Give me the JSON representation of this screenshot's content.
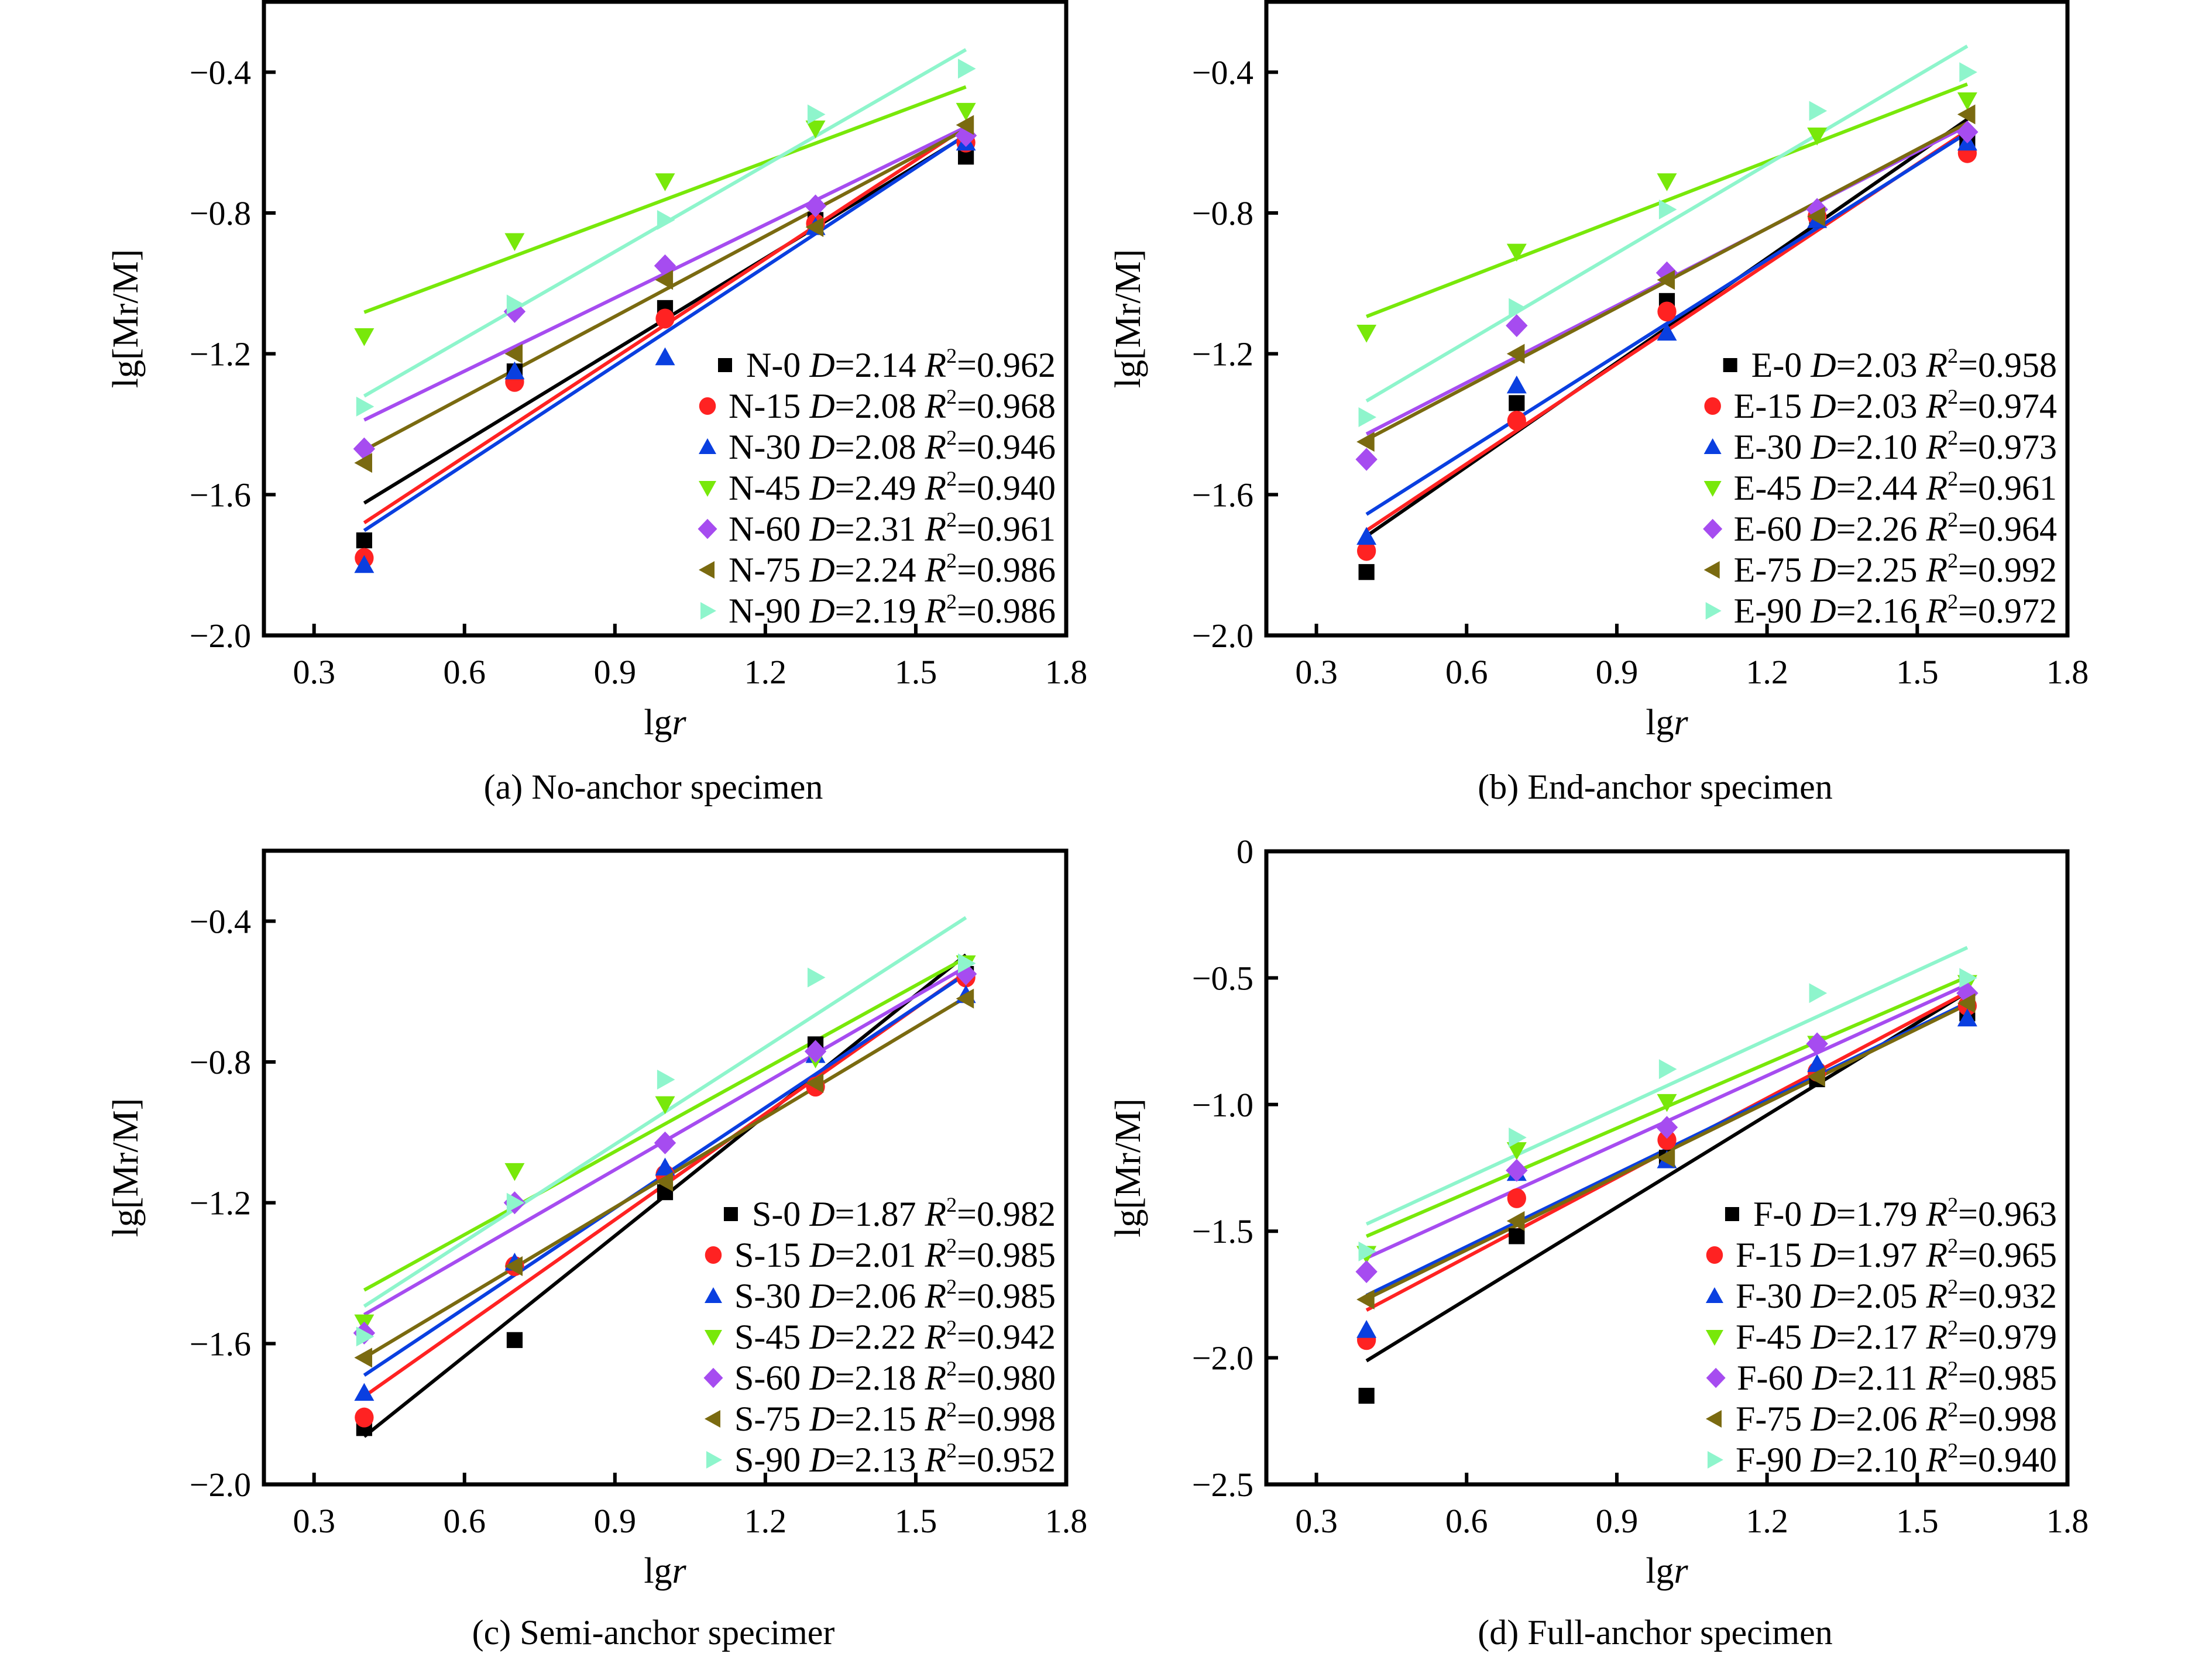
{
  "figure": {
    "colors": {
      "0": "#000000",
      "15": "#ff2222",
      "30": "#0a3fe0",
      "45": "#78e80a",
      "60": "#a64cf0",
      "75": "#7a6a10",
      "90": "#8ef5cc"
    },
    "markers": {
      "0": "square",
      "15": "circle",
      "30": "triangle-up",
      "45": "triangle-down",
      "60": "diamond",
      "75": "triangle-left",
      "90": "triangle-right"
    }
  },
  "chart_data": [
    {
      "type": "scatter",
      "id": "a",
      "caption": "(a) No-anchor specimen",
      "xlabel_prefix": "lg",
      "xlabel_var": "r",
      "ylabel": "lg[Mr/M]",
      "xlim": [
        0.2,
        1.8
      ],
      "ylim": [
        -2.0,
        -0.2
      ],
      "xticks": [
        0.3,
        0.6,
        0.9,
        1.2,
        1.5,
        1.8
      ],
      "xtick_labels": [
        "0.3",
        "0.6",
        "0.9",
        "1.2",
        "1.5",
        "1.8"
      ],
      "yticks": [
        -0.4,
        -0.8,
        -1.2,
        -1.6,
        -2.0
      ],
      "ytick_labels": [
        "−0.4",
        "−0.8",
        "−1.2",
        "−1.6",
        "−2.0"
      ],
      "legend_position": "bottom-right",
      "x": [
        0.4,
        0.7,
        1.0,
        1.3,
        1.6
      ],
      "series": [
        {
          "name": "N-0",
          "key": "0",
          "D": "2.14",
          "R2": "0.962",
          "values": [
            -1.73,
            -1.25,
            -1.07,
            -0.82,
            -0.64
          ]
        },
        {
          "name": "N-15",
          "key": "15",
          "D": "2.08",
          "R2": "0.968",
          "values": [
            -1.78,
            -1.28,
            -1.1,
            -0.83,
            -0.6
          ]
        },
        {
          "name": "N-30",
          "key": "30",
          "D": "2.08",
          "R2": "0.946",
          "values": [
            -1.8,
            -1.25,
            -1.21,
            -0.84,
            -0.6
          ]
        },
        {
          "name": "N-45",
          "key": "45",
          "D": "2.49",
          "R2": "0.940",
          "values": [
            -1.15,
            -0.88,
            -0.71,
            -0.56,
            -0.51
          ]
        },
        {
          "name": "N-60",
          "key": "60",
          "D": "2.31",
          "R2": "0.961",
          "values": [
            -1.47,
            -1.08,
            -0.95,
            -0.78,
            -0.58
          ]
        },
        {
          "name": "N-75",
          "key": "75",
          "D": "2.24",
          "R2": "0.986",
          "values": [
            -1.51,
            -1.2,
            -0.99,
            -0.84,
            -0.55
          ]
        },
        {
          "name": "N-90",
          "key": "90",
          "D": "2.19",
          "R2": "0.986",
          "values": [
            -1.35,
            -1.06,
            -0.82,
            -0.52,
            -0.39
          ]
        }
      ]
    },
    {
      "type": "scatter",
      "id": "b",
      "caption": "(b) End-anchor specimen",
      "xlabel_prefix": "lg",
      "xlabel_var": "r",
      "ylabel": "lg[Mr/M]",
      "xlim": [
        0.2,
        1.8
      ],
      "ylim": [
        -2.0,
        -0.2
      ],
      "xticks": [
        0.3,
        0.6,
        0.9,
        1.2,
        1.5,
        1.8
      ],
      "xtick_labels": [
        "0.3",
        "0.6",
        "0.9",
        "1.2",
        "1.5",
        "1.8"
      ],
      "yticks": [
        -0.4,
        -0.8,
        -1.2,
        -1.6,
        -2.0
      ],
      "ytick_labels": [
        "−0.4",
        "−0.8",
        "−1.2",
        "−1.6",
        "−2.0"
      ],
      "legend_position": "bottom-right",
      "x": [
        0.4,
        0.7,
        1.0,
        1.3,
        1.6
      ],
      "series": [
        {
          "name": "E-0",
          "key": "0",
          "D": "2.03",
          "R2": "0.958",
          "values": [
            -1.82,
            -1.34,
            -1.05,
            -0.82,
            -0.6
          ]
        },
        {
          "name": "E-15",
          "key": "15",
          "D": "2.03",
          "R2": "0.974",
          "values": [
            -1.76,
            -1.39,
            -1.08,
            -0.81,
            -0.63
          ]
        },
        {
          "name": "E-30",
          "key": "30",
          "D": "2.10",
          "R2": "0.973",
          "values": [
            -1.72,
            -1.29,
            -1.14,
            -0.82,
            -0.6
          ]
        },
        {
          "name": "E-45",
          "key": "45",
          "D": "2.44",
          "R2": "0.961",
          "values": [
            -1.14,
            -0.91,
            -0.71,
            -0.58,
            -0.48
          ]
        },
        {
          "name": "E-60",
          "key": "60",
          "D": "2.26",
          "R2": "0.964",
          "values": [
            -1.5,
            -1.12,
            -0.97,
            -0.79,
            -0.57
          ]
        },
        {
          "name": "E-75",
          "key": "75",
          "D": "2.25",
          "R2": "0.992",
          "values": [
            -1.45,
            -1.2,
            -0.99,
            -0.81,
            -0.52
          ]
        },
        {
          "name": "E-90",
          "key": "90",
          "D": "2.16",
          "R2": "0.972",
          "values": [
            -1.38,
            -1.07,
            -0.79,
            -0.51,
            -0.4
          ]
        }
      ]
    },
    {
      "type": "scatter",
      "id": "c",
      "caption": "(c) Semi-anchor specimer",
      "xlabel_prefix": "lg",
      "xlabel_var": "r",
      "ylabel": "lg[Mr/M]",
      "xlim": [
        0.2,
        1.8
      ],
      "ylim": [
        -2.0,
        -0.2
      ],
      "xticks": [
        0.3,
        0.6,
        0.9,
        1.2,
        1.5,
        1.8
      ],
      "xtick_labels": [
        "0.3",
        "0.6",
        "0.9",
        "1.2",
        "1.5",
        "1.8"
      ],
      "yticks": [
        -0.4,
        -0.8,
        -1.2,
        -1.6,
        -2.0
      ],
      "ytick_labels": [
        "−0.4",
        "−0.8",
        "−1.2",
        "−1.6",
        "−2.0"
      ],
      "legend_position": "bottom-right",
      "x": [
        0.4,
        0.7,
        1.0,
        1.3,
        1.6
      ],
      "series": [
        {
          "name": "S-0",
          "key": "0",
          "D": "1.87",
          "R2": "0.982",
          "values": [
            -1.84,
            -1.59,
            -1.17,
            -0.75,
            -0.55
          ]
        },
        {
          "name": "S-15",
          "key": "15",
          "D": "2.01",
          "R2": "0.985",
          "values": [
            -1.81,
            -1.38,
            -1.12,
            -0.87,
            -0.56
          ]
        },
        {
          "name": "S-30",
          "key": "30",
          "D": "2.06",
          "R2": "0.985",
          "values": [
            -1.74,
            -1.37,
            -1.1,
            -0.78,
            -0.61
          ]
        },
        {
          "name": "S-45",
          "key": "45",
          "D": "2.22",
          "R2": "0.942",
          "values": [
            -1.54,
            -1.11,
            -0.92,
            -0.79,
            -0.52
          ]
        },
        {
          "name": "S-60",
          "key": "60",
          "D": "2.18",
          "R2": "0.980",
          "values": [
            -1.57,
            -1.2,
            -1.03,
            -0.77,
            -0.55
          ]
        },
        {
          "name": "S-75",
          "key": "75",
          "D": "2.15",
          "R2": "0.998",
          "values": [
            -1.64,
            -1.38,
            -1.14,
            -0.86,
            -0.62
          ]
        },
        {
          "name": "S-90",
          "key": "90",
          "D": "2.13",
          "R2": "0.952",
          "values": [
            -1.58,
            -1.2,
            -0.85,
            -0.56,
            -0.52
          ]
        }
      ]
    },
    {
      "type": "scatter",
      "id": "d",
      "caption": "(d) Full-anchor specimen",
      "xlabel_prefix": "lg",
      "xlabel_var": "r",
      "ylabel": "lg[Mr/M]",
      "xlim": [
        0.2,
        1.8
      ],
      "ylim": [
        -2.5,
        0
      ],
      "xticks": [
        0.3,
        0.6,
        0.9,
        1.2,
        1.5,
        1.8
      ],
      "xtick_labels": [
        "0.3",
        "0.6",
        "0.9",
        "1.2",
        "1.5",
        "1.8"
      ],
      "yticks": [
        0,
        -0.5,
        -1.0,
        -1.5,
        -2.0,
        -2.5
      ],
      "ytick_labels": [
        "0",
        "−0.5",
        "−1.0",
        "−1.5",
        "−2.0",
        "−2.5"
      ],
      "legend_position": "bottom-right",
      "x": [
        0.4,
        0.7,
        1.0,
        1.3,
        1.6
      ],
      "series": [
        {
          "name": "F-0",
          "key": "0",
          "D": "1.79",
          "R2": "0.963",
          "values": [
            -2.15,
            -1.52,
            -1.21,
            -0.9,
            -0.64
          ]
        },
        {
          "name": "F-15",
          "key": "15",
          "D": "1.97",
          "R2": "0.965",
          "values": [
            -1.93,
            -1.37,
            -1.14,
            -0.87,
            -0.61
          ]
        },
        {
          "name": "F-30",
          "key": "30",
          "D": "2.05",
          "R2": "0.932",
          "values": [
            -1.89,
            -1.27,
            -1.22,
            -0.84,
            -0.66
          ]
        },
        {
          "name": "F-45",
          "key": "45",
          "D": "2.17",
          "R2": "0.979",
          "values": [
            -1.59,
            -1.18,
            -0.99,
            -0.76,
            -0.52
          ]
        },
        {
          "name": "F-60",
          "key": "60",
          "D": "2.11",
          "R2": "0.985",
          "values": [
            -1.66,
            -1.26,
            -1.09,
            -0.76,
            -0.56
          ]
        },
        {
          "name": "F-75",
          "key": "75",
          "D": "2.06",
          "R2": "0.998",
          "values": [
            -1.77,
            -1.46,
            -1.21,
            -0.89,
            -0.6
          ]
        },
        {
          "name": "F-90",
          "key": "90",
          "D": "2.10",
          "R2": "0.940",
          "values": [
            -1.58,
            -1.13,
            -0.86,
            -0.56,
            -0.5
          ]
        }
      ]
    }
  ]
}
